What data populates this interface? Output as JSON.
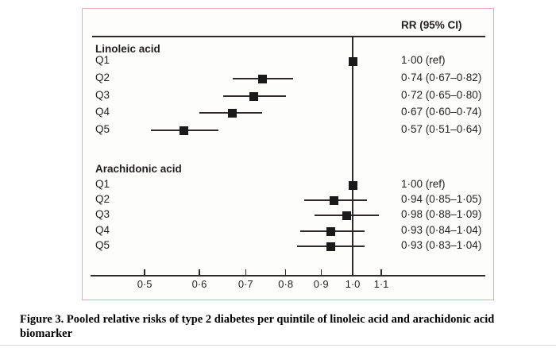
{
  "figure": {
    "caption_line1": "Figure 3. Pooled relative risks of type 2 diabetes per quintile of linoleic acid and arachidonic acid",
    "caption_line2": "biomarker"
  },
  "colors": {
    "border_pink": "#eba9b5",
    "ink": "#231f20",
    "line": "#2e2a2b",
    "marker_black": "#1a1a1a",
    "plot_background": "#fdfdfc",
    "bottom_rule_gray": "#d9d9d9"
  },
  "chart_data": {
    "type": "forest",
    "title": "",
    "column_header": "RR (95% CI)",
    "x_scale": "log",
    "xlim": [
      0.42,
      1.18
    ],
    "reference_value": 1.0,
    "x_ticks": [
      0.5,
      0.6,
      0.7,
      0.8,
      0.9,
      1.0,
      1.1
    ],
    "x_tick_labels": [
      "0·5",
      "0·6",
      "0·7",
      "0·8",
      "0·9",
      "1·0",
      "1·1"
    ],
    "grid": false,
    "legend": false,
    "groups": [
      {
        "label": "Linoleic acid",
        "rows": [
          {
            "label": "Q1",
            "rr": 1.0,
            "lo": null,
            "hi": null,
            "display": "1·00 (ref)"
          },
          {
            "label": "Q2",
            "rr": 0.74,
            "lo": 0.67,
            "hi": 0.82,
            "display": "0·74 (0·67–0·82)"
          },
          {
            "label": "Q3",
            "rr": 0.72,
            "lo": 0.65,
            "hi": 0.8,
            "display": "0·72 (0·65–0·80)"
          },
          {
            "label": "Q4",
            "rr": 0.67,
            "lo": 0.6,
            "hi": 0.74,
            "display": "0·67 (0·60–0·74)"
          },
          {
            "label": "Q5",
            "rr": 0.57,
            "lo": 0.51,
            "hi": 0.64,
            "display": "0·57 (0·51–0·64)"
          }
        ]
      },
      {
        "label": "Arachidonic acid",
        "rows": [
          {
            "label": "Q1",
            "rr": 1.0,
            "lo": null,
            "hi": null,
            "display": "1·00 (ref)"
          },
          {
            "label": "Q2",
            "rr": 0.94,
            "lo": 0.85,
            "hi": 1.05,
            "display": "0·94 (0·85–1·05)"
          },
          {
            "label": "Q3",
            "rr": 0.98,
            "lo": 0.88,
            "hi": 1.09,
            "display": "0·98 (0·88–1·09)"
          },
          {
            "label": "Q4",
            "rr": 0.93,
            "lo": 0.84,
            "hi": 1.04,
            "display": "0·93 (0·84–1·04)"
          },
          {
            "label": "Q5",
            "rr": 0.93,
            "lo": 0.83,
            "hi": 1.04,
            "display": "0·93 (0·83–1·04)"
          }
        ]
      }
    ]
  }
}
